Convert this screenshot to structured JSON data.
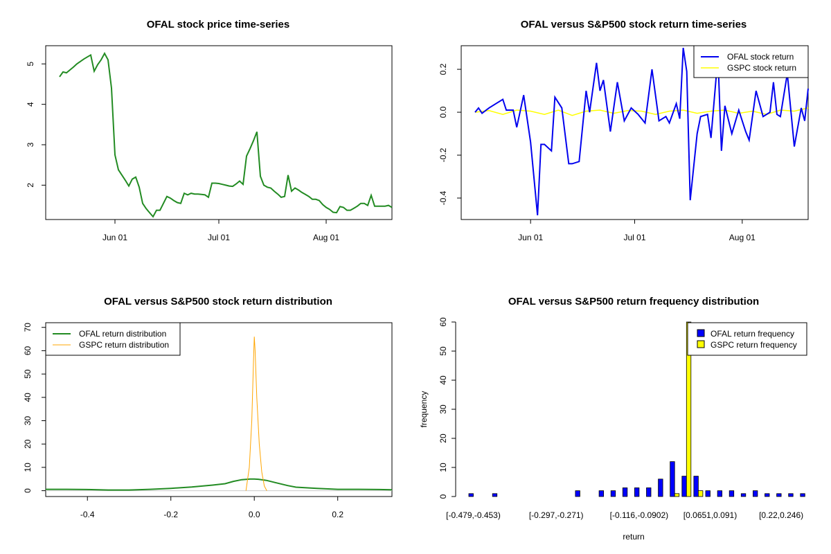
{
  "colors": {
    "ofal": "#228B22",
    "ofal_ret": "#0000EE",
    "gspc_ret": "#FFFF00",
    "gspc_dist": "#FFA500",
    "hist_ofal": "#0000FF",
    "hist_gspc": "#FFFF00"
  },
  "chart_data": [
    {
      "type": "line",
      "title": "OFAL stock price time-series",
      "xlabel": "",
      "ylabel": "",
      "x_ticks": [
        "Jun 01",
        "Jul 01",
        "Aug 01"
      ],
      "x_tick_days": [
        16,
        46,
        77
      ],
      "xlim_days": [
        -4,
        96
      ],
      "ylim": [
        1.15,
        5.45
      ],
      "y_ticks": [
        2,
        3,
        4,
        5
      ],
      "grid": false,
      "series": [
        {
          "x_days": [
            0,
            1,
            2,
            3,
            4,
            5,
            6,
            7,
            8,
            9,
            10,
            11,
            12,
            13,
            14,
            15,
            16,
            17,
            18,
            19,
            20,
            21,
            22,
            23,
            24,
            25,
            26,
            27,
            28,
            29,
            30,
            31,
            32,
            33,
            34,
            35,
            36,
            37,
            38,
            39,
            40,
            41,
            42,
            43,
            44,
            45,
            46,
            47,
            48,
            49,
            50,
            51,
            52,
            53,
            54,
            55,
            56,
            57,
            58,
            59,
            60,
            61,
            62,
            63,
            64,
            65,
            66,
            67,
            68,
            69,
            70,
            71,
            72,
            73,
            74,
            75,
            76,
            77,
            78,
            79,
            80,
            81,
            82,
            83,
            84,
            85,
            86,
            87,
            88,
            89,
            90,
            91,
            92,
            93,
            94,
            95,
            96
          ],
          "values": [
            4.68,
            4.8,
            4.78,
            4.85,
            4.92,
            5.0,
            5.06,
            5.12,
            5.17,
            5.22,
            4.82,
            4.98,
            5.1,
            5.26,
            5.1,
            4.4,
            2.75,
            2.38,
            2.25,
            2.12,
            1.98,
            2.15,
            2.2,
            1.95,
            1.55,
            1.42,
            1.32,
            1.22,
            1.38,
            1.38,
            1.55,
            1.72,
            1.68,
            1.62,
            1.57,
            1.55,
            1.8,
            1.76,
            1.8,
            1.78,
            1.78,
            1.77,
            1.76,
            1.7,
            2.05,
            2.05,
            2.04,
            2.02,
            2.0,
            1.98,
            1.97,
            2.03,
            2.1,
            2.02,
            2.72,
            2.9,
            3.1,
            3.32,
            2.22,
            2.0,
            1.95,
            1.93,
            1.85,
            1.78,
            1.7,
            1.72,
            2.25,
            1.85,
            1.93,
            1.88,
            1.82,
            1.77,
            1.72,
            1.65,
            1.65,
            1.62,
            1.52,
            1.45,
            1.4,
            1.33,
            1.32,
            1.47,
            1.45,
            1.38,
            1.38,
            1.43,
            1.48,
            1.55,
            1.55,
            1.5,
            1.75,
            1.48,
            1.48,
            1.48,
            1.48,
            1.5,
            1.45
          ]
        }
      ]
    },
    {
      "type": "line",
      "title": "OFAL versus S&P500 stock return time-series",
      "xlabel": "",
      "ylabel": "",
      "x_ticks": [
        "Jun 01",
        "Jul 01",
        "Aug 01"
      ],
      "x_tick_days": [
        16,
        46,
        77
      ],
      "xlim_days": [
        -4,
        96
      ],
      "ylim": [
        -0.5,
        0.31
      ],
      "y_ticks": [
        -0.4,
        -0.2,
        0.0,
        0.2
      ],
      "grid": false,
      "legend": {
        "position": "top-right",
        "entries": [
          "OFAL stock return",
          "GSPC stock return"
        ]
      },
      "series": [
        {
          "name": "OFAL stock return",
          "x_days": [
            0,
            1,
            2,
            4,
            6,
            8,
            9,
            11,
            12,
            14,
            16,
            18,
            19,
            20,
            22,
            23,
            25,
            27,
            28,
            30,
            32,
            33,
            35,
            36,
            37,
            39,
            41,
            43,
            45,
            47,
            49,
            51,
            53,
            55,
            56,
            58,
            59,
            60,
            61,
            62,
            64,
            65,
            67,
            68,
            70,
            71,
            72,
            74,
            76,
            78,
            79,
            81,
            83,
            85,
            86,
            87,
            88,
            90,
            92,
            94,
            95,
            96
          ],
          "values": [
            0.0,
            0.02,
            -0.005,
            0.02,
            0.04,
            0.06,
            0.01,
            0.01,
            -0.07,
            0.08,
            -0.14,
            -0.48,
            -0.15,
            -0.15,
            -0.18,
            0.07,
            0.02,
            -0.24,
            -0.24,
            -0.23,
            0.1,
            0.0,
            0.23,
            0.1,
            0.15,
            -0.09,
            0.14,
            -0.04,
            0.02,
            -0.01,
            -0.05,
            0.2,
            -0.04,
            -0.02,
            -0.05,
            0.04,
            -0.03,
            0.3,
            0.19,
            -0.41,
            -0.1,
            -0.02,
            -0.01,
            -0.12,
            0.26,
            -0.18,
            0.03,
            -0.1,
            0.01,
            -0.09,
            -0.13,
            0.1,
            -0.02,
            0.0,
            0.14,
            -0.01,
            -0.02,
            0.18,
            -0.16,
            0.02,
            -0.04,
            0.11
          ]
        },
        {
          "name": "GSPC stock return",
          "x_days": [
            0,
            4,
            8,
            12,
            16,
            20,
            24,
            28,
            32,
            36,
            40,
            44,
            48,
            52,
            56,
            60,
            64,
            68,
            72,
            76,
            80,
            84,
            88,
            92,
            96
          ],
          "values": [
            0.0,
            0.008,
            -0.01,
            0.01,
            0.005,
            -0.01,
            0.01,
            -0.015,
            0.005,
            0.01,
            -0.005,
            0.008,
            0.005,
            -0.01,
            0.005,
            0.01,
            -0.005,
            0.005,
            0.01,
            -0.005,
            0.005,
            -0.01,
            0.01,
            0.005,
            0.02
          ]
        }
      ]
    },
    {
      "type": "line",
      "title": "OFAL versus S&P500 stock return distribution",
      "xlabel": "",
      "ylabel": "",
      "xlim": [
        -0.5,
        0.33
      ],
      "ylim": [
        -2.5,
        72
      ],
      "x_ticks": [
        -0.4,
        -0.2,
        0.0,
        0.2
      ],
      "y_ticks": [
        0,
        10,
        20,
        30,
        40,
        50,
        60,
        70
      ],
      "grid": false,
      "legend": {
        "position": "top-left",
        "entries": [
          "OFAL return distribution",
          "GSPC return distribution"
        ]
      },
      "series": [
        {
          "name": "OFAL return distribution",
          "x": [
            -0.5,
            -0.45,
            -0.4,
            -0.35,
            -0.3,
            -0.25,
            -0.2,
            -0.15,
            -0.1,
            -0.07,
            -0.05,
            -0.03,
            -0.01,
            0.0,
            0.01,
            0.03,
            0.05,
            0.08,
            0.1,
            0.15,
            0.2,
            0.25,
            0.3,
            0.33
          ],
          "values": [
            0.6,
            0.6,
            0.5,
            0.3,
            0.3,
            0.6,
            1.0,
            1.6,
            2.4,
            3.0,
            4.0,
            4.7,
            5.0,
            5.0,
            4.9,
            4.4,
            3.5,
            2.2,
            1.5,
            1.0,
            0.6,
            0.6,
            0.5,
            0.4
          ]
        },
        {
          "name": "GSPC return distribution",
          "x": [
            -0.02,
            -0.012,
            -0.006,
            -0.002,
            0.0,
            0.002,
            0.006,
            0.012,
            0.018,
            0.024,
            0.03
          ],
          "values": [
            0,
            10,
            30,
            55,
            66,
            60,
            40,
            20,
            8,
            2,
            0
          ]
        }
      ]
    },
    {
      "type": "bar",
      "title": "OFAL versus S&P500 return frequency distribution",
      "xlabel": "return",
      "ylabel": "frequency",
      "ylim": [
        0,
        60
      ],
      "y_ticks": [
        0,
        10,
        20,
        30,
        40,
        50,
        60
      ],
      "x_tick_labels": [
        "[-0.479,-0.453)",
        "[-0.297,-0.271)",
        "[-0.116,-0.0902)",
        "[0.0651,0.091)",
        "[0.22,0.246)"
      ],
      "x_tick_bins": [
        0,
        7,
        14,
        20,
        26
      ],
      "grid": false,
      "legend": {
        "position": "top-right",
        "entries": [
          "OFAL return frequency",
          "GSPC return frequency"
        ]
      },
      "series": [
        {
          "name": "OFAL return frequency",
          "values": [
            1,
            0,
            1,
            0,
            0,
            0,
            0,
            0,
            0,
            2,
            0,
            2,
            2,
            3,
            3,
            3,
            6,
            12,
            7,
            7,
            2,
            2,
            2,
            1,
            2,
            1,
            1,
            1,
            1,
            0
          ]
        },
        {
          "name": "GSPC return frequency",
          "values": [
            0,
            0,
            0,
            0,
            0,
            0,
            0,
            0,
            0,
            0,
            0,
            0,
            0,
            0,
            0,
            0,
            0,
            1,
            60,
            2,
            0,
            0,
            0,
            0,
            0,
            0,
            0,
            0,
            0,
            0
          ]
        }
      ]
    }
  ]
}
